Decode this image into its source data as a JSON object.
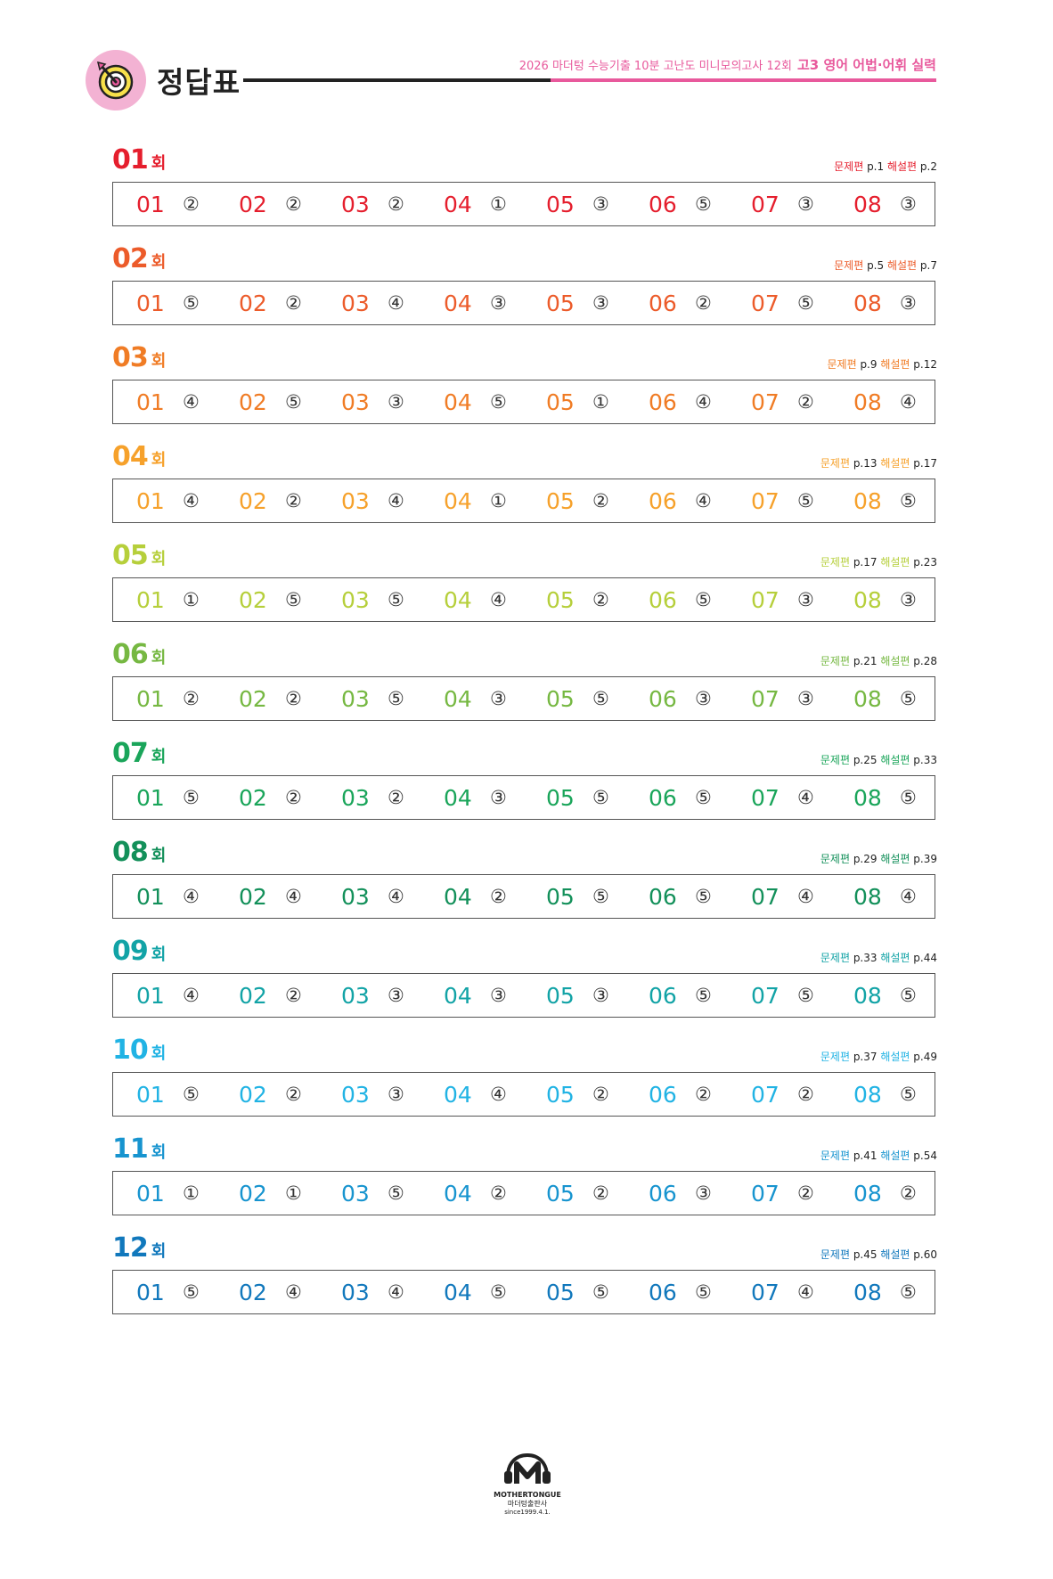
{
  "header": {
    "title": "정답표",
    "series": "2026 마더텅 수능기출 10분 고난도 미니모의고사 12회",
    "subject": "고3 영어 어법·어휘 실력"
  },
  "labels": {
    "round_suffix": "회",
    "problem_label": "문제편",
    "solution_label": "해설편"
  },
  "rounds": [
    {
      "number": "01",
      "color": "#e51e2d",
      "problem_page": "p.1",
      "solution_page": "p.2",
      "answers": [
        "②",
        "②",
        "②",
        "①",
        "③",
        "⑤",
        "③",
        "③"
      ]
    },
    {
      "number": "02",
      "color": "#ec5b2a",
      "problem_page": "p.5",
      "solution_page": "p.7",
      "answers": [
        "⑤",
        "②",
        "④",
        "③",
        "③",
        "②",
        "⑤",
        "③"
      ]
    },
    {
      "number": "03",
      "color": "#f07c25",
      "problem_page": "p.9",
      "solution_page": "p.12",
      "answers": [
        "④",
        "⑤",
        "③",
        "⑤",
        "①",
        "④",
        "②",
        "④"
      ]
    },
    {
      "number": "04",
      "color": "#f6a12b",
      "problem_page": "p.13",
      "solution_page": "p.17",
      "answers": [
        "④",
        "②",
        "④",
        "①",
        "②",
        "④",
        "⑤",
        "⑤"
      ]
    },
    {
      "number": "05",
      "color": "#b6cf3b",
      "problem_page": "p.17",
      "solution_page": "p.23",
      "answers": [
        "①",
        "⑤",
        "⑤",
        "④",
        "②",
        "⑤",
        "③",
        "③"
      ]
    },
    {
      "number": "06",
      "color": "#76b842",
      "problem_page": "p.21",
      "solution_page": "p.28",
      "answers": [
        "②",
        "②",
        "⑤",
        "③",
        "⑤",
        "③",
        "③",
        "⑤"
      ]
    },
    {
      "number": "07",
      "color": "#1aa55a",
      "problem_page": "p.25",
      "solution_page": "p.33",
      "answers": [
        "⑤",
        "②",
        "②",
        "③",
        "⑤",
        "⑤",
        "④",
        "⑤"
      ]
    },
    {
      "number": "08",
      "color": "#13905a",
      "problem_page": "p.29",
      "solution_page": "p.39",
      "answers": [
        "④",
        "④",
        "④",
        "②",
        "⑤",
        "⑤",
        "④",
        "④"
      ]
    },
    {
      "number": "09",
      "color": "#12a3a6",
      "problem_page": "p.33",
      "solution_page": "p.44",
      "answers": [
        "④",
        "②",
        "③",
        "③",
        "③",
        "⑤",
        "⑤",
        "⑤"
      ]
    },
    {
      "number": "10",
      "color": "#21b3e4",
      "problem_page": "p.37",
      "solution_page": "p.49",
      "answers": [
        "⑤",
        "②",
        "③",
        "④",
        "②",
        "②",
        "②",
        "⑤"
      ]
    },
    {
      "number": "11",
      "color": "#1794cf",
      "problem_page": "p.41",
      "solution_page": "p.54",
      "answers": [
        "①",
        "①",
        "⑤",
        "②",
        "②",
        "③",
        "②",
        "②"
      ]
    },
    {
      "number": "12",
      "color": "#1178bc",
      "problem_page": "p.45",
      "solution_page": "p.60",
      "answers": [
        "⑤",
        "④",
        "④",
        "⑤",
        "⑤",
        "⑤",
        "④",
        "⑤"
      ]
    }
  ],
  "question_numbers": [
    "01",
    "02",
    "03",
    "04",
    "05",
    "06",
    "07",
    "08"
  ],
  "footer": {
    "brand": "MOTHERTONGUE",
    "publisher": "마더텅출판사",
    "since": "since1999.4.1."
  }
}
